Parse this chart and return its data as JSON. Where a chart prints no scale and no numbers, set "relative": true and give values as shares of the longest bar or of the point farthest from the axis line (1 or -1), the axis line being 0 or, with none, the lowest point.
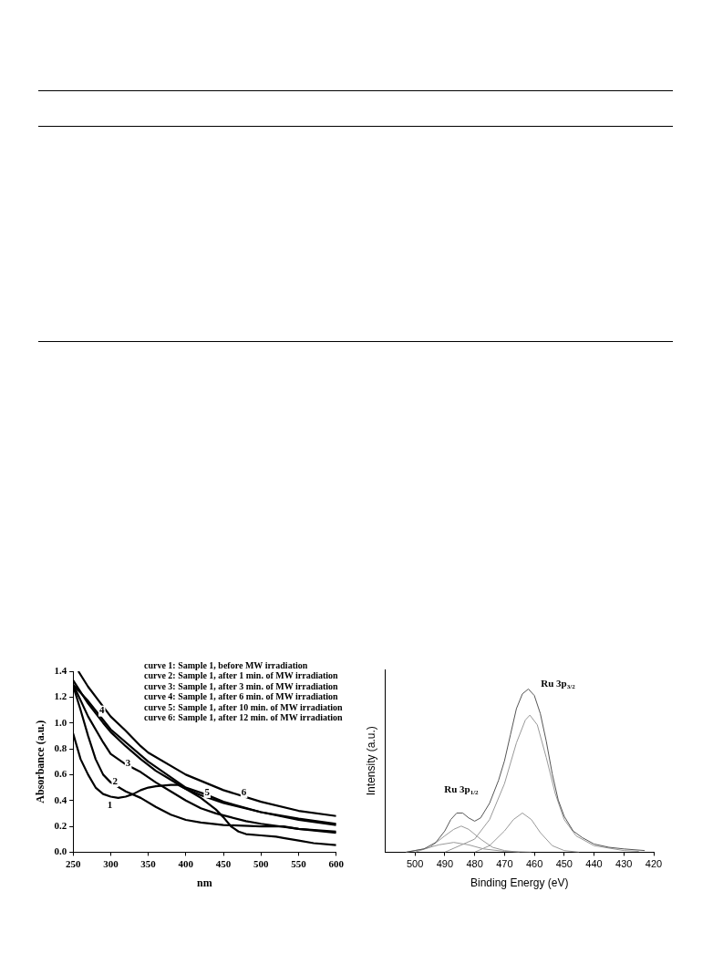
{
  "chart_data": [
    {
      "type": "line",
      "xlabel": "nm",
      "ylabel": "Absorbance (a.u.)",
      "xlim": [
        250,
        600
      ],
      "ylim": [
        0,
        1.4
      ],
      "xticks": [
        250,
        300,
        350,
        400,
        450,
        500,
        550,
        600
      ],
      "yticks": [
        {
          "value": 0,
          "label": "0.0"
        },
        {
          "value": 0.2,
          "label": "0.2"
        },
        {
          "value": 0.4,
          "label": "0.4"
        },
        {
          "value": 0.6,
          "label": "0.6"
        },
        {
          "value": 0.8,
          "label": "0.8"
        },
        {
          "value": 1,
          "label": "1.0"
        },
        {
          "value": 1.2,
          "label": "1.2"
        },
        {
          "value": 1.4,
          "label": "1.4"
        }
      ],
      "legend": false,
      "marker": "none",
      "line_style": "solid",
      "series": [
        {
          "color": "#000000",
          "x": [
            250,
            260,
            270,
            280,
            290,
            300,
            310,
            320,
            330,
            340,
            350,
            360,
            380,
            390,
            400,
            420,
            440,
            450,
            460,
            470,
            480,
            500,
            520,
            530,
            550,
            570,
            600
          ],
          "values": [
            0.92,
            0.72,
            0.6,
            0.5,
            0.45,
            0.43,
            0.42,
            0.43,
            0.45,
            0.48,
            0.5,
            0.51,
            0.52,
            0.52,
            0.49,
            0.42,
            0.33,
            0.27,
            0.2,
            0.16,
            0.14,
            0.13,
            0.12,
            0.11,
            0.09,
            0.07,
            0.055
          ]
        },
        {
          "color": "#000000",
          "x": [
            251,
            260,
            270,
            280,
            290,
            300,
            320,
            340,
            360,
            380,
            400,
            420,
            450,
            500,
            530,
            550,
            600
          ],
          "values": [
            1.27,
            1.1,
            0.9,
            0.72,
            0.6,
            0.54,
            0.47,
            0.42,
            0.35,
            0.29,
            0.25,
            0.23,
            0.21,
            0.2,
            0.2,
            0.18,
            0.16
          ]
        },
        {
          "color": "#000000",
          "x": [
            250,
            270,
            290,
            300,
            320,
            340,
            360,
            380,
            400,
            420,
            440,
            460,
            480,
            500,
            550,
            600
          ],
          "values": [
            1.3,
            1.05,
            0.85,
            0.76,
            0.68,
            0.62,
            0.54,
            0.47,
            0.4,
            0.34,
            0.3,
            0.27,
            0.24,
            0.22,
            0.18,
            0.15
          ]
        },
        {
          "color": "#000000",
          "x": [
            250,
            270,
            290,
            300,
            320,
            340,
            360,
            380,
            400,
            420,
            450,
            500,
            550,
            600
          ],
          "values": [
            1.33,
            1.15,
            1.0,
            0.93,
            0.82,
            0.72,
            0.63,
            0.56,
            0.49,
            0.44,
            0.38,
            0.31,
            0.25,
            0.21
          ]
        },
        {
          "color": "#000000",
          "x": [
            251,
            270,
            300,
            350,
            400,
            425,
            450,
            500,
            550,
            600
          ],
          "values": [
            1.29,
            1.17,
            0.95,
            0.7,
            0.5,
            0.45,
            0.39,
            0.31,
            0.26,
            0.22
          ]
        },
        {
          "color": "#000000",
          "x": [
            257,
            270,
            300,
            320,
            340,
            350,
            400,
            450,
            500,
            550,
            600
          ],
          "values": [
            1.4,
            1.28,
            1.05,
            0.94,
            0.82,
            0.77,
            0.6,
            0.48,
            0.39,
            0.32,
            0.28
          ]
        }
      ],
      "annotations": [
        "curve 1: Sample 1, before MW irradiation",
        "curve 2: Sample 1, after 1 min. of MW irradiation",
        "curve 3: Sample 1, after 3 min. of MW irradiation",
        "curve 4: Sample 1, after 6 min. of MW irradiation",
        "curve 5: Sample 1, after 10 min. of MW irradiation",
        "curve 6: Sample 1, after 12 min. of MW irradiation",
        "1",
        "2",
        "3",
        "4",
        "5",
        "6"
      ]
    },
    {
      "type": "line",
      "relative": true,
      "xlabel": "Binding Energy (eV)",
      "ylabel": "Intensity (a.u.)",
      "xlim": [
        510,
        420
      ],
      "xticks": [
        500,
        490,
        480,
        470,
        460,
        450,
        440,
        430,
        420
      ],
      "tick_labels": "x",
      "legend": false,
      "marker": "none",
      "line_style": "solid",
      "series": [
        {
          "color": "#555555",
          "x": [
            503,
            497,
            493,
            490,
            488,
            486,
            484,
            482,
            480,
            478,
            475,
            472,
            470,
            468,
            466,
            464,
            462,
            460,
            458,
            456,
            454,
            452,
            450,
            447,
            444,
            440,
            435,
            430,
            423
          ],
          "values": [
            0,
            0.02,
            0.06,
            0.13,
            0.2,
            0.24,
            0.24,
            0.21,
            0.19,
            0.21,
            0.3,
            0.44,
            0.56,
            0.72,
            0.88,
            0.97,
            1,
            0.96,
            0.85,
            0.68,
            0.48,
            0.32,
            0.22,
            0.13,
            0.09,
            0.05,
            0.03,
            0.02,
            0.01
          ]
        },
        {
          "color": "#999999",
          "x": [
            490,
            480,
            475,
            470,
            466,
            463,
            461.5,
            459,
            456,
            453,
            450,
            446,
            440,
            430,
            425
          ],
          "values": [
            0,
            0.08,
            0.2,
            0.42,
            0.67,
            0.81,
            0.84,
            0.78,
            0.58,
            0.36,
            0.2,
            0.1,
            0.04,
            0.01,
            0.005
          ]
        },
        {
          "color": "#999999",
          "x": [
            480,
            475,
            470,
            467,
            464,
            461,
            458,
            454,
            450,
            445
          ],
          "values": [
            0,
            0.04,
            0.13,
            0.2,
            0.24,
            0.2,
            0.12,
            0.04,
            0.01,
            0
          ]
        },
        {
          "color": "#999999",
          "x": [
            500,
            495,
            490,
            487,
            484.5,
            482,
            478,
            474,
            470,
            465
          ],
          "values": [
            0,
            0.03,
            0.1,
            0.14,
            0.16,
            0.14,
            0.08,
            0.03,
            0.01,
            0
          ]
        },
        {
          "color": "#999999",
          "x": [
            503,
            497,
            492,
            487,
            482,
            477,
            470,
            461
          ],
          "values": [
            0,
            0.02,
            0.045,
            0.06,
            0.045,
            0.02,
            0.005,
            0
          ]
        }
      ],
      "annotations": [
        "Ru 3p$_{1/2}$",
        "Ru 3p$_{3/2}$"
      ]
    }
  ]
}
